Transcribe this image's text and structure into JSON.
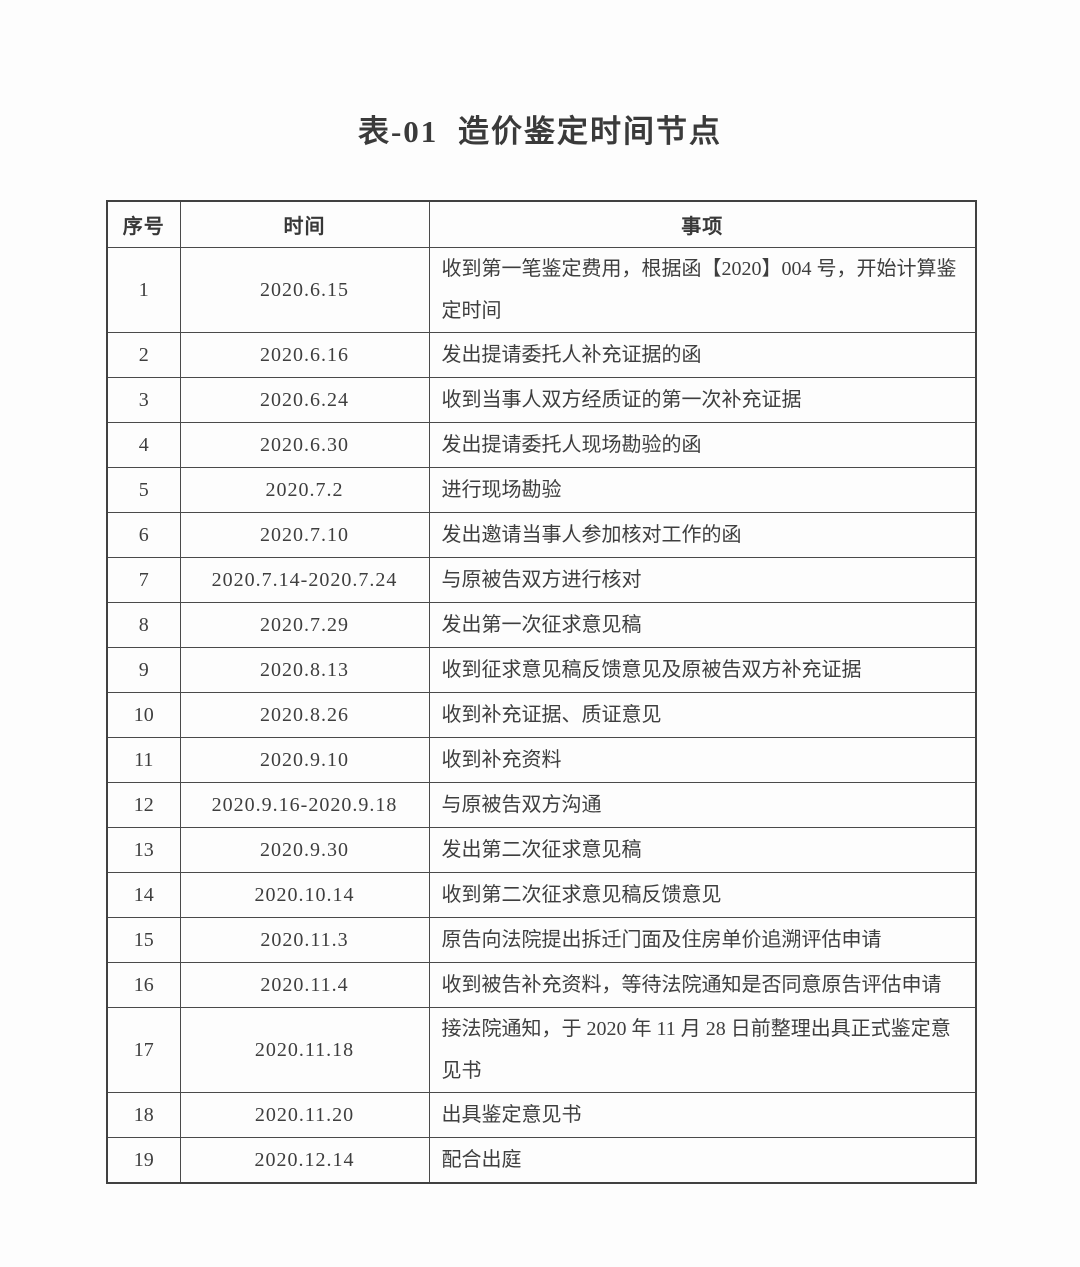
{
  "page": {
    "title": "表-01 造价鉴定时间节点"
  },
  "table": {
    "headers": [
      "序号",
      "时间",
      "事项"
    ],
    "rows": [
      {
        "no": "1",
        "date": "2020.6.15",
        "event": "收到第一笔鉴定费用，根据函【2020】004 号，开始计算鉴定时间"
      },
      {
        "no": "2",
        "date": "2020.6.16",
        "event": "发出提请委托人补充证据的函"
      },
      {
        "no": "3",
        "date": "2020.6.24",
        "event": "收到当事人双方经质证的第一次补充证据"
      },
      {
        "no": "4",
        "date": "2020.6.30",
        "event": "发出提请委托人现场勘验的函"
      },
      {
        "no": "5",
        "date": "2020.7.2",
        "event": "进行现场勘验"
      },
      {
        "no": "6",
        "date": "2020.7.10",
        "event": "发出邀请当事人参加核对工作的函"
      },
      {
        "no": "7",
        "date": "2020.7.14-2020.7.24",
        "event": "与原被告双方进行核对"
      },
      {
        "no": "8",
        "date": "2020.7.29",
        "event": "发出第一次征求意见稿"
      },
      {
        "no": "9",
        "date": "2020.8.13",
        "event": "收到征求意见稿反馈意见及原被告双方补充证据"
      },
      {
        "no": "10",
        "date": "2020.8.26",
        "event": "收到补充证据、质证意见"
      },
      {
        "no": "11",
        "date": "2020.9.10",
        "event": "收到补充资料"
      },
      {
        "no": "12",
        "date": "2020.9.16-2020.9.18",
        "event": "与原被告双方沟通"
      },
      {
        "no": "13",
        "date": "2020.9.30",
        "event": "发出第二次征求意见稿"
      },
      {
        "no": "14",
        "date": "2020.10.14",
        "event": "收到第二次征求意见稿反馈意见"
      },
      {
        "no": "15",
        "date": "2020.11.3",
        "event": "原告向法院提出拆迁门面及住房单价追溯评估申请"
      },
      {
        "no": "16",
        "date": "2020.11.4",
        "event": "收到被告补充资料，等待法院通知是否同意原告评估申请"
      },
      {
        "no": "17",
        "date": "2020.11.18",
        "event": "接法院通知，于 2020 年 11 月 28 日前整理出具正式鉴定意见书"
      },
      {
        "no": "18",
        "date": "2020.11.20",
        "event": "出具鉴定意见书"
      },
      {
        "no": "19",
        "date": "2020.12.14",
        "event": "配合出庭"
      }
    ]
  }
}
